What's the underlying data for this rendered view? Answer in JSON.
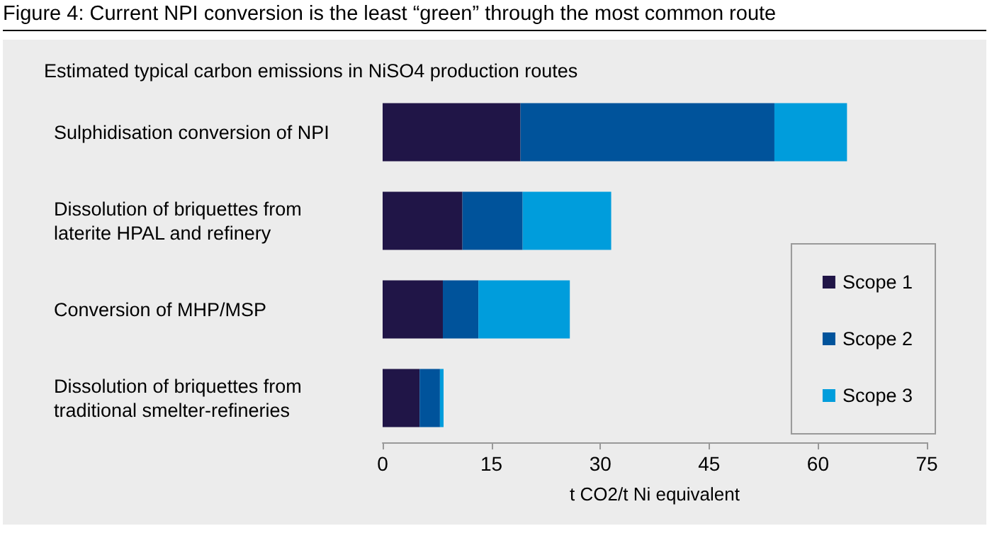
{
  "chart_data": {
    "type": "bar",
    "orientation": "horizontal",
    "stacked": true,
    "title": "Figure 4: Current NPI conversion is the least “green” through the most common route",
    "subtitle": "Estimated typical carbon emissions in NiSO4 production routes",
    "xlabel": "t CO2/t Ni equivalent",
    "categories": [
      "Sulphidisation conversion of NPI",
      "Dissolution of briquettes from laterite HPAL and refinery",
      "Conversion of MHP/MSP",
      "Dissolution of briquettes from traditional smelter-refineries"
    ],
    "series": [
      {
        "name": "Scope 1",
        "color": "#201547",
        "values": [
          19,
          11,
          8.3,
          5.1
        ]
      },
      {
        "name": "Scope 2",
        "color": "#00539b",
        "values": [
          35,
          8.3,
          4.9,
          2.8
        ]
      },
      {
        "name": "Scope 3",
        "color": "#009ddc",
        "values": [
          10,
          12.2,
          12.6,
          0.5
        ]
      }
    ],
    "xlim": [
      0,
      75
    ],
    "xticks": [
      0,
      15,
      30,
      45,
      60,
      75
    ],
    "grid": false,
    "legend": "right"
  }
}
